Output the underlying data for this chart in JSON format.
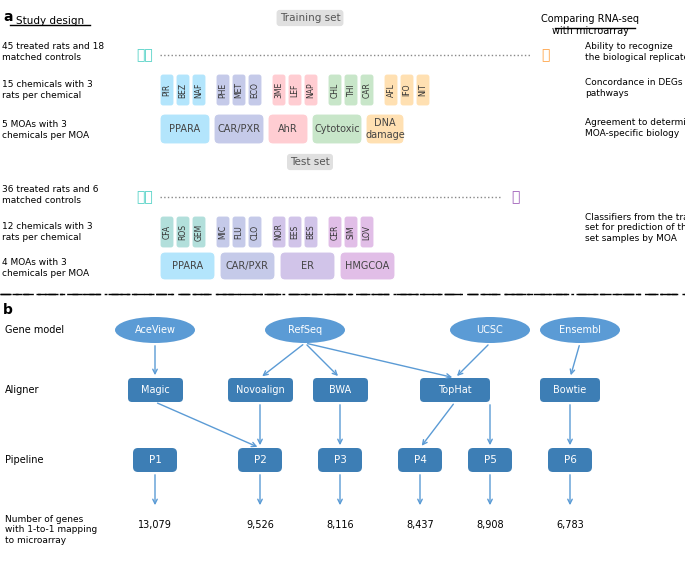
{
  "title_a": "a",
  "title_b": "b",
  "study_design_label": "Study design",
  "training_set_label": "Training set",
  "test_set_label": "Test set",
  "comparing_label": "Comparing RNA-seq\nwith microarray",
  "row1_left": "45 treated rats and 18\nmatched controls",
  "row1_right": "Ability to recognize\nthe biological replicates",
  "row2_left": "15 chemicals with 3\nrats per chemical",
  "row2_right": "Concordance in DEGs and\npathways",
  "row3_left": "5 MOAs with 3\nchemicals per MOA",
  "row3_right": "Agreement to determine\nMOA-specific biology",
  "row4_left": "36 treated rats and 6\nmatched controls",
  "row5_left": "12 chemicals with 3\nrats per chemical",
  "row5_right": "Classifiers from the training\nset for prediction of the test\nset samples by MOA",
  "row6_left": "4 MOAs with 3\nchemicals per MOA",
  "train_chemicals_blue": [
    "PIR",
    "BEZ",
    "NAF"
  ],
  "train_chemicals_blue2": [
    "PHE",
    "MET",
    "ECO"
  ],
  "train_chemicals_pink": [
    "3ME",
    "LEF",
    "NAP"
  ],
  "train_chemicals_green": [
    "CHL",
    "THI",
    "CAR"
  ],
  "train_chemicals_orange": [
    "AFL",
    "IFO",
    "NIT"
  ],
  "train_moa_colors": [
    "#b3e5fc",
    "#c5cae9",
    "#ffcdd2",
    "#c8e6c9",
    "#ffe0b2"
  ],
  "train_moa_labels": [
    "PPARA",
    "CAR/PXR",
    "AhR",
    "Cytotoxic",
    "DNA\ndamage"
  ],
  "test_chemicals_teal": [
    "CFA",
    "ROS",
    "GEM"
  ],
  "test_chemicals_blue": [
    "MIC",
    "FLU",
    "CLO"
  ],
  "test_chemicals_purple": [
    "NOR",
    "EES",
    "BES"
  ],
  "test_chemicals_lavender": [
    "CER",
    "SIM",
    "LOV"
  ],
  "test_moa_colors": [
    "#b3e5fc",
    "#c5cae9",
    "#d1c4e9",
    "#e1bee7"
  ],
  "test_moa_labels": [
    "PPARA",
    "CAR/PXR",
    "ER",
    "HMGCOA"
  ],
  "chem_color_blue": "#b3e5fc",
  "chem_color_blue2": "#c5cae9",
  "chem_color_pink": "#ffcdd2",
  "chem_color_green": "#c8e6c9",
  "chem_color_orange": "#ffe0b2",
  "chem_color_teal": "#b2dfdb",
  "chem_color_purple_light": "#d1c4e9",
  "chem_color_lavender": "#e1bee7",
  "box_blue": "#3d7eb5",
  "box_light_blue": "#5b9bd5",
  "ellipse_blue": "#5b9bd5",
  "pipeline_labels": [
    "P1",
    "P2",
    "P3",
    "P4",
    "P5",
    "P6"
  ],
  "gene_model_labels": [
    "AceView",
    "RefSeq",
    "UCSC",
    "Ensembl"
  ],
  "aligner_labels": [
    "Magic",
    "Novoalign",
    "BWA",
    "TopHat",
    "Bowtie"
  ],
  "gene_counts": [
    "13,079",
    "9,526",
    "8,116",
    "8,437",
    "8,908",
    "6,783"
  ],
  "gene_model_label": "Gene model",
  "aligner_label": "Aligner",
  "pipeline_label": "Pipeline",
  "num_genes_label": "Number of genes\nwith 1-to-1 mapping\nto microarray"
}
